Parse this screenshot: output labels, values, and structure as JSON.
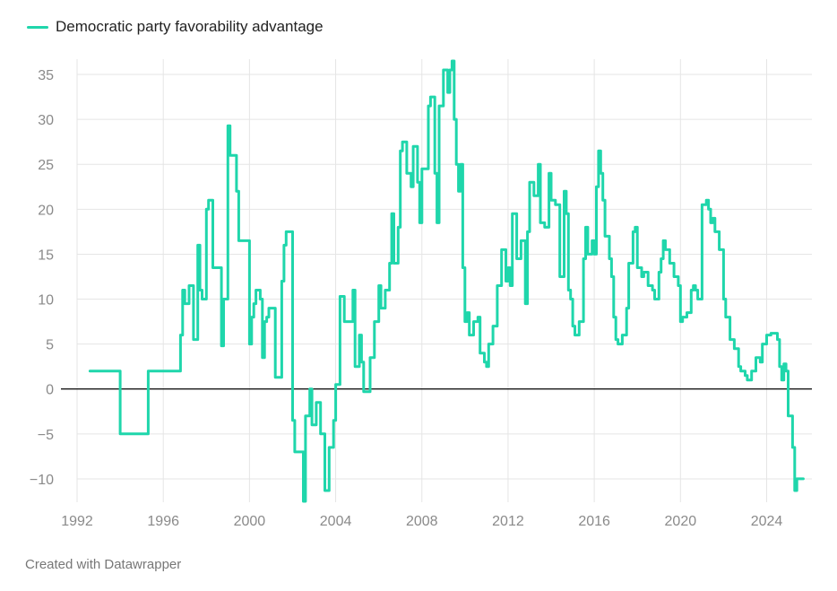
{
  "legend": {
    "label": "Democratic party favorability advantage",
    "color": "#1fd6ab"
  },
  "credit": "Created with Datawrapper",
  "colors": {
    "line": "#1fd6ab",
    "grid": "#e5e5e5",
    "zero_line": "#000000",
    "tick_text": "#8a8a8a"
  },
  "chart_data": {
    "type": "line",
    "title": "",
    "xlabel": "",
    "ylabel": "",
    "xlim": [
      1992,
      2026.1
    ],
    "ylim": [
      -12.6,
      36.7
    ],
    "x_ticks": [
      1992,
      1996,
      2000,
      2004,
      2008,
      2012,
      2016,
      2020,
      2024
    ],
    "x_tick_labels": [
      "1992",
      "1996",
      "2000",
      "2004",
      "2008",
      "2012",
      "2016",
      "2020",
      "2024"
    ],
    "y_ticks": [
      -10,
      -5,
      0,
      5,
      10,
      15,
      20,
      25,
      30,
      35
    ],
    "y_tick_labels": [
      "−10",
      "−5",
      "0",
      "5",
      "10",
      "15",
      "20",
      "25",
      "30",
      "35"
    ],
    "grid": true,
    "zero_line": true,
    "legend_position": "top-left",
    "series": [
      {
        "name": "Democratic party favorability advantage",
        "step": true,
        "points": [
          [
            1992.6,
            2.0
          ],
          [
            1994.0,
            -5.0
          ],
          [
            1995.3,
            2.0
          ],
          [
            1996.8,
            6.0
          ],
          [
            1996.9,
            11.0
          ],
          [
            1997.0,
            9.5
          ],
          [
            1997.2,
            11.5
          ],
          [
            1997.4,
            5.5
          ],
          [
            1997.6,
            16.0
          ],
          [
            1997.7,
            11.0
          ],
          [
            1997.8,
            10.0
          ],
          [
            1998.0,
            20.0
          ],
          [
            1998.1,
            21.0
          ],
          [
            1998.3,
            13.5
          ],
          [
            1998.7,
            4.8
          ],
          [
            1998.8,
            10.0
          ],
          [
            1999.0,
            29.3
          ],
          [
            1999.1,
            26.0
          ],
          [
            1999.4,
            22.0
          ],
          [
            1999.5,
            16.5
          ],
          [
            2000.0,
            5.0
          ],
          [
            2000.1,
            8.0
          ],
          [
            2000.2,
            9.5
          ],
          [
            2000.3,
            11.0
          ],
          [
            2000.5,
            10.0
          ],
          [
            2000.6,
            3.5
          ],
          [
            2000.7,
            7.5
          ],
          [
            2000.8,
            8.0
          ],
          [
            2000.9,
            9.0
          ],
          [
            2001.2,
            1.3
          ],
          [
            2001.5,
            12.0
          ],
          [
            2001.6,
            16.0
          ],
          [
            2001.7,
            17.5
          ],
          [
            2002.0,
            -3.5
          ],
          [
            2002.1,
            -7.0
          ],
          [
            2002.5,
            -12.5
          ],
          [
            2002.6,
            -3.0
          ],
          [
            2002.8,
            0.0
          ],
          [
            2002.9,
            -4.0
          ],
          [
            2003.1,
            -1.5
          ],
          [
            2003.3,
            -5.0
          ],
          [
            2003.5,
            -11.3
          ],
          [
            2003.7,
            -6.5
          ],
          [
            2003.9,
            -3.5
          ],
          [
            2004.0,
            0.5
          ],
          [
            2004.2,
            10.3
          ],
          [
            2004.4,
            7.5
          ],
          [
            2004.8,
            11.0
          ],
          [
            2004.9,
            2.5
          ],
          [
            2005.1,
            6.0
          ],
          [
            2005.2,
            3.0
          ],
          [
            2005.3,
            -0.3
          ],
          [
            2005.6,
            3.5
          ],
          [
            2005.8,
            7.5
          ],
          [
            2006.0,
            11.5
          ],
          [
            2006.1,
            9.0
          ],
          [
            2006.3,
            11.0
          ],
          [
            2006.5,
            14.0
          ],
          [
            2006.6,
            19.5
          ],
          [
            2006.7,
            14.0
          ],
          [
            2006.9,
            18.0
          ],
          [
            2007.0,
            26.5
          ],
          [
            2007.1,
            27.5
          ],
          [
            2007.3,
            24.0
          ],
          [
            2007.5,
            22.5
          ],
          [
            2007.6,
            27.0
          ],
          [
            2007.8,
            23.0
          ],
          [
            2007.9,
            18.5
          ],
          [
            2008.0,
            24.5
          ],
          [
            2008.3,
            31.5
          ],
          [
            2008.4,
            32.5
          ],
          [
            2008.6,
            24.0
          ],
          [
            2008.7,
            18.5
          ],
          [
            2008.8,
            31.5
          ],
          [
            2009.0,
            35.5
          ],
          [
            2009.2,
            33.0
          ],
          [
            2009.3,
            35.5
          ],
          [
            2009.4,
            36.5
          ],
          [
            2009.5,
            30.0
          ],
          [
            2009.6,
            25.0
          ],
          [
            2009.7,
            22.0
          ],
          [
            2009.8,
            25.0
          ],
          [
            2009.9,
            13.5
          ],
          [
            2010.0,
            7.5
          ],
          [
            2010.1,
            8.5
          ],
          [
            2010.2,
            6.0
          ],
          [
            2010.4,
            7.5
          ],
          [
            2010.6,
            8.0
          ],
          [
            2010.7,
            4.0
          ],
          [
            2010.9,
            3.0
          ],
          [
            2011.0,
            2.5
          ],
          [
            2011.1,
            5.0
          ],
          [
            2011.3,
            7.0
          ],
          [
            2011.5,
            11.5
          ],
          [
            2011.7,
            15.5
          ],
          [
            2011.9,
            12.0
          ],
          [
            2012.0,
            13.5
          ],
          [
            2012.1,
            11.5
          ],
          [
            2012.2,
            19.5
          ],
          [
            2012.4,
            14.5
          ],
          [
            2012.6,
            16.5
          ],
          [
            2012.8,
            9.5
          ],
          [
            2012.9,
            17.5
          ],
          [
            2013.0,
            23.0
          ],
          [
            2013.2,
            21.5
          ],
          [
            2013.4,
            25.0
          ],
          [
            2013.5,
            18.5
          ],
          [
            2013.7,
            18.0
          ],
          [
            2013.9,
            24.0
          ],
          [
            2014.0,
            21.0
          ],
          [
            2014.2,
            20.5
          ],
          [
            2014.4,
            12.5
          ],
          [
            2014.6,
            22.0
          ],
          [
            2014.7,
            19.5
          ],
          [
            2014.8,
            11.0
          ],
          [
            2014.9,
            10.0
          ],
          [
            2015.0,
            7.0
          ],
          [
            2015.1,
            6.0
          ],
          [
            2015.3,
            7.5
          ],
          [
            2015.5,
            14.5
          ],
          [
            2015.6,
            18.0
          ],
          [
            2015.7,
            15.0
          ],
          [
            2015.9,
            16.5
          ],
          [
            2016.0,
            15.0
          ],
          [
            2016.1,
            22.5
          ],
          [
            2016.2,
            26.5
          ],
          [
            2016.3,
            24.0
          ],
          [
            2016.4,
            21.0
          ],
          [
            2016.5,
            17.0
          ],
          [
            2016.7,
            14.5
          ],
          [
            2016.8,
            12.5
          ],
          [
            2016.9,
            8.0
          ],
          [
            2017.0,
            5.5
          ],
          [
            2017.1,
            5.0
          ],
          [
            2017.3,
            6.0
          ],
          [
            2017.5,
            9.0
          ],
          [
            2017.6,
            14.0
          ],
          [
            2017.8,
            17.5
          ],
          [
            2017.9,
            18.0
          ],
          [
            2018.0,
            13.5
          ],
          [
            2018.2,
            12.5
          ],
          [
            2018.3,
            13.0
          ],
          [
            2018.5,
            11.5
          ],
          [
            2018.7,
            11.0
          ],
          [
            2018.8,
            10.0
          ],
          [
            2019.0,
            13.0
          ],
          [
            2019.1,
            14.5
          ],
          [
            2019.2,
            16.5
          ],
          [
            2019.3,
            15.5
          ],
          [
            2019.5,
            14.0
          ],
          [
            2019.7,
            12.5
          ],
          [
            2019.9,
            11.5
          ],
          [
            2020.0,
            7.5
          ],
          [
            2020.1,
            8.0
          ],
          [
            2020.3,
            8.5
          ],
          [
            2020.5,
            11.0
          ],
          [
            2020.6,
            11.5
          ],
          [
            2020.7,
            11.0
          ],
          [
            2020.8,
            10.0
          ],
          [
            2021.0,
            20.5
          ],
          [
            2021.2,
            21.0
          ],
          [
            2021.3,
            20.0
          ],
          [
            2021.4,
            18.5
          ],
          [
            2021.5,
            19.0
          ],
          [
            2021.6,
            17.5
          ],
          [
            2021.8,
            15.5
          ],
          [
            2022.0,
            10.0
          ],
          [
            2022.1,
            8.0
          ],
          [
            2022.3,
            5.5
          ],
          [
            2022.5,
            4.5
          ],
          [
            2022.7,
            2.5
          ],
          [
            2022.8,
            2.0
          ],
          [
            2023.0,
            1.5
          ],
          [
            2023.1,
            1.0
          ],
          [
            2023.3,
            2.0
          ],
          [
            2023.5,
            3.5
          ],
          [
            2023.7,
            3.0
          ],
          [
            2023.8,
            5.0
          ],
          [
            2024.0,
            6.0
          ],
          [
            2024.2,
            6.2
          ],
          [
            2024.5,
            5.5
          ],
          [
            2024.6,
            2.5
          ],
          [
            2024.7,
            1.0
          ],
          [
            2024.8,
            2.8
          ],
          [
            2024.9,
            2.0
          ],
          [
            2025.0,
            -3.0
          ],
          [
            2025.2,
            -6.5
          ],
          [
            2025.3,
            -11.3
          ],
          [
            2025.4,
            -10.0
          ],
          [
            2025.7,
            -10.0
          ]
        ]
      }
    ]
  }
}
